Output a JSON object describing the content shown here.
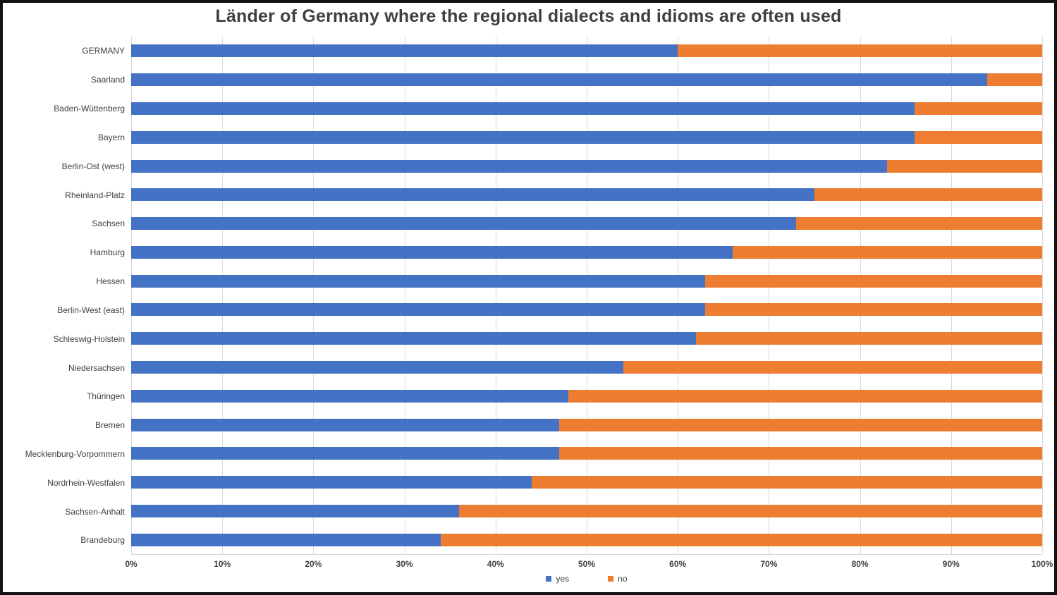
{
  "title": "Länder of Germany where the regional dialects and idioms are often used",
  "colors": {
    "yes_blue": "#4472C4",
    "no_orange": "#ED7D31",
    "title_text": "#404040",
    "axis_text": "#404040",
    "gridline": "#D9D9D9",
    "frame_border": "#121212",
    "background": "#FFFFFF"
  },
  "x_axis": {
    "ticks": [
      "0%",
      "10%",
      "20%",
      "30%",
      "40%",
      "50%",
      "60%",
      "70%",
      "80%",
      "90%",
      "100%"
    ]
  },
  "legend": {
    "items": [
      {
        "label": "yes",
        "color": "#4472C4"
      },
      {
        "label": "no",
        "color": "#ED7D31"
      }
    ]
  },
  "chart_data": {
    "type": "bar",
    "orientation": "horizontal",
    "stacked": true,
    "unit": "percent",
    "title": "Länder of Germany where the regional dialects and idioms are often used",
    "categories": [
      "GERMANY",
      "Saarland",
      "Baden-Wüttenberg",
      "Bayern",
      "Berlin-Ost (west)",
      "Rheinland-Platz",
      "Sachsen",
      "Hamburg",
      "Hessen",
      "Berlin-West (east)",
      "Schleswig-Holstein",
      "Niedersachsen",
      "Thüringen",
      "Bremen",
      "Mecklenburg-Vorpommern",
      "Nordrhein-Westfalen",
      "Sachsen-Anhalt",
      "Brandeburg"
    ],
    "series": [
      {
        "name": "yes",
        "color": "#4472C4",
        "values": [
          60,
          94,
          86,
          86,
          83,
          75,
          73,
          66,
          63,
          63,
          62,
          54,
          48,
          47,
          47,
          44,
          36,
          34
        ]
      },
      {
        "name": "no",
        "color": "#ED7D31",
        "values": [
          40,
          6,
          14,
          14,
          17,
          25,
          27,
          34,
          37,
          37,
          38,
          46,
          52,
          53,
          53,
          56,
          64,
          66
        ]
      }
    ],
    "xlim": [
      0,
      100
    ],
    "x_tick_step": 10,
    "grid": "vertical",
    "legend_position": "bottom"
  }
}
